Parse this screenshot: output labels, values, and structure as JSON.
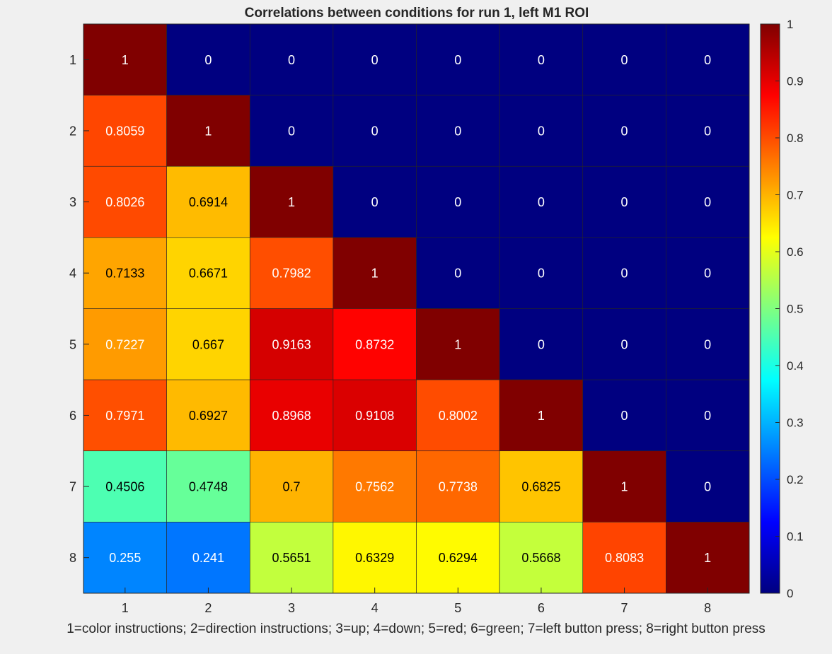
{
  "chart_data": {
    "type": "heatmap",
    "title": "Correlations between conditions for run 1, left M1 ROI",
    "xlabel": "1=color instructions; 2=direction instructions; 3=up; 4=down; 5=red; 6=green; 7=left button press; 8=right button press",
    "ylabel": "",
    "x_tick_labels": [
      "1",
      "2",
      "3",
      "4",
      "5",
      "6",
      "7",
      "8"
    ],
    "y_tick_labels": [
      "1",
      "2",
      "3",
      "4",
      "5",
      "6",
      "7",
      "8"
    ],
    "colormap": "jet",
    "clim": [
      0,
      1
    ],
    "colorbar": {
      "location": "right",
      "ticks": [
        0,
        0.1,
        0.2,
        0.3,
        0.4,
        0.5,
        0.6,
        0.7,
        0.8,
        0.9,
        1
      ],
      "tick_labels": [
        "0",
        "0.1",
        "0.2",
        "0.3",
        "0.4",
        "0.5",
        "0.6",
        "0.7",
        "0.8",
        "0.9",
        "1"
      ]
    },
    "grid": true,
    "values": [
      [
        1,
        0,
        0,
        0,
        0,
        0,
        0,
        0
      ],
      [
        0.8059,
        1,
        0,
        0,
        0,
        0,
        0,
        0
      ],
      [
        0.8026,
        0.6914,
        1,
        0,
        0,
        0,
        0,
        0
      ],
      [
        0.7133,
        0.6671,
        0.7982,
        1,
        0,
        0,
        0,
        0
      ],
      [
        0.7227,
        0.667,
        0.9163,
        0.8732,
        1,
        0,
        0,
        0
      ],
      [
        0.7971,
        0.6927,
        0.8968,
        0.9108,
        0.8002,
        1,
        0,
        0
      ],
      [
        0.4506,
        0.4748,
        0.7,
        0.7562,
        0.7738,
        0.6825,
        1,
        0
      ],
      [
        0.255,
        0.241,
        0.5651,
        0.6329,
        0.6294,
        0.5668,
        0.8083,
        1
      ]
    ],
    "cell_labels": [
      [
        "1",
        "0",
        "0",
        "0",
        "0",
        "0",
        "0",
        "0"
      ],
      [
        "0.8059",
        "1",
        "0",
        "0",
        "0",
        "0",
        "0",
        "0"
      ],
      [
        "0.8026",
        "0.6914",
        "1",
        "0",
        "0",
        "0",
        "0",
        "0"
      ],
      [
        "0.7133",
        "0.6671",
        "0.7982",
        "1",
        "0",
        "0",
        "0",
        "0"
      ],
      [
        "0.7227",
        "0.667",
        "0.9163",
        "0.8732",
        "1",
        "0",
        "0",
        "0"
      ],
      [
        "0.7971",
        "0.6927",
        "0.8968",
        "0.9108",
        "0.8002",
        "1",
        "0",
        "0"
      ],
      [
        "0.4506",
        "0.4748",
        "0.7",
        "0.7562",
        "0.7738",
        "0.6825",
        "1",
        "0"
      ],
      [
        "0.255",
        "0.241",
        "0.5651",
        "0.6329",
        "0.6294",
        "0.5668",
        "0.8083",
        "1"
      ]
    ]
  }
}
